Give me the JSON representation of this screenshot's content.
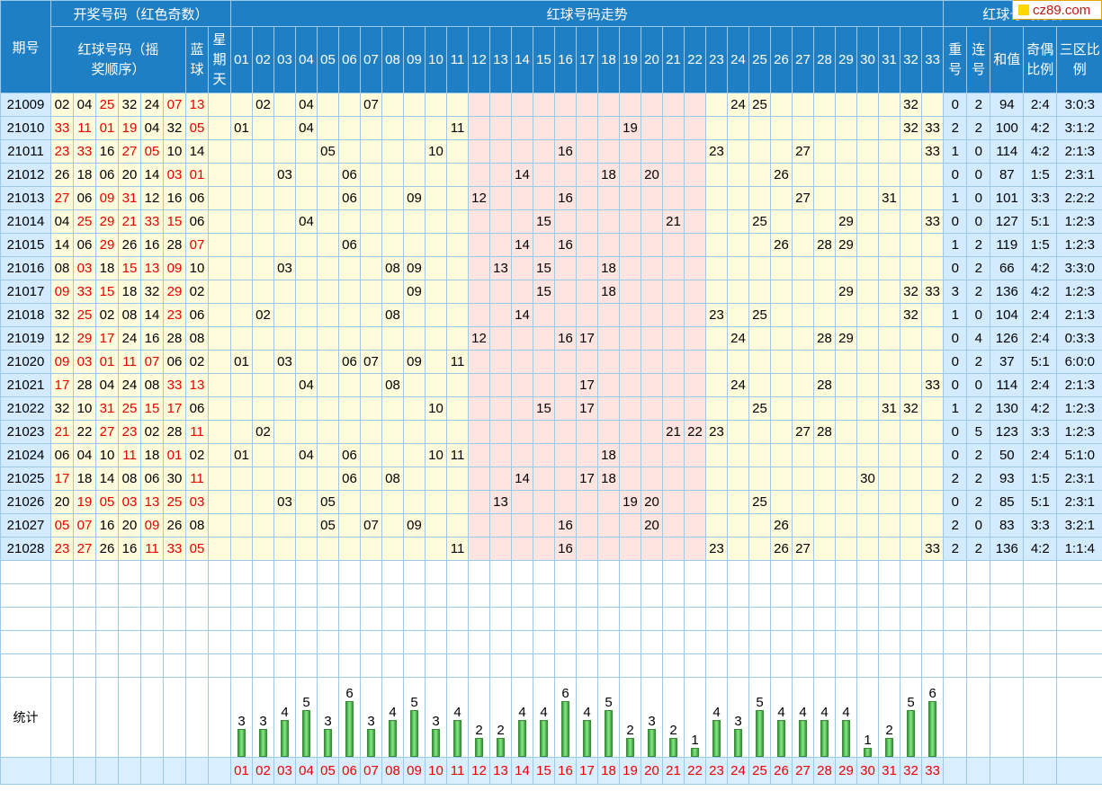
{
  "header": {
    "draw_numbers": "开奖号码（红色奇数）",
    "trend": "红球号码走势",
    "analysis": "红球号码分析",
    "period": "期号",
    "red_balls": "红球号码（摇奖顺序）",
    "blue_ball": "蓝球",
    "weekday": "星期天",
    "repeat": "重号",
    "consecutive": "连号",
    "sum": "和值",
    "odd_even": "奇偶比例",
    "zones": "三区比例",
    "numbers": [
      "01",
      "02",
      "03",
      "04",
      "05",
      "06",
      "07",
      "08",
      "09",
      "10",
      "11",
      "12",
      "13",
      "14",
      "15",
      "16",
      "17",
      "18",
      "19",
      "20",
      "21",
      "22",
      "23",
      "24",
      "25",
      "26",
      "27",
      "28",
      "29",
      "30",
      "31",
      "32",
      "33"
    ]
  },
  "rows": [
    {
      "period": "21009",
      "reds": [
        "02",
        "04",
        "25",
        "32",
        "24",
        "07"
      ],
      "blue": "13",
      "repeat": "0",
      "consec": "2",
      "sum": "94",
      "oe": "2:4",
      "zone": "3:0:3"
    },
    {
      "period": "21010",
      "reds": [
        "33",
        "11",
        "01",
        "19",
        "04",
        "32"
      ],
      "blue": "05",
      "repeat": "2",
      "consec": "2",
      "sum": "100",
      "oe": "4:2",
      "zone": "3:1:2"
    },
    {
      "period": "21011",
      "reds": [
        "23",
        "33",
        "16",
        "27",
        "05",
        "10"
      ],
      "blue": "14",
      "repeat": "1",
      "consec": "0",
      "sum": "114",
      "oe": "4:2",
      "zone": "2:1:3"
    },
    {
      "period": "21012",
      "reds": [
        "26",
        "18",
        "06",
        "20",
        "14",
        "03"
      ],
      "blue": "01",
      "repeat": "0",
      "consec": "0",
      "sum": "87",
      "oe": "1:5",
      "zone": "2:3:1"
    },
    {
      "period": "21013",
      "reds": [
        "27",
        "06",
        "09",
        "31",
        "12",
        "16"
      ],
      "blue": "06",
      "repeat": "1",
      "consec": "0",
      "sum": "101",
      "oe": "3:3",
      "zone": "2:2:2"
    },
    {
      "period": "21014",
      "reds": [
        "04",
        "25",
        "29",
        "21",
        "33",
        "15"
      ],
      "blue": "06",
      "repeat": "0",
      "consec": "0",
      "sum": "127",
      "oe": "5:1",
      "zone": "1:2:3"
    },
    {
      "period": "21015",
      "reds": [
        "14",
        "06",
        "29",
        "26",
        "16",
        "28"
      ],
      "blue": "07",
      "repeat": "1",
      "consec": "2",
      "sum": "119",
      "oe": "1:5",
      "zone": "1:2:3"
    },
    {
      "period": "21016",
      "reds": [
        "08",
        "03",
        "18",
        "15",
        "13",
        "09"
      ],
      "blue": "10",
      "repeat": "0",
      "consec": "2",
      "sum": "66",
      "oe": "4:2",
      "zone": "3:3:0"
    },
    {
      "period": "21017",
      "reds": [
        "09",
        "33",
        "15",
        "18",
        "32",
        "29"
      ],
      "blue": "02",
      "repeat": "3",
      "consec": "2",
      "sum": "136",
      "oe": "4:2",
      "zone": "1:2:3"
    },
    {
      "period": "21018",
      "reds": [
        "32",
        "25",
        "02",
        "08",
        "14",
        "23"
      ],
      "blue": "06",
      "repeat": "1",
      "consec": "0",
      "sum": "104",
      "oe": "2:4",
      "zone": "2:1:3"
    },
    {
      "period": "21019",
      "reds": [
        "12",
        "29",
        "17",
        "24",
        "16",
        "28"
      ],
      "blue": "08",
      "repeat": "0",
      "consec": "4",
      "sum": "126",
      "oe": "2:4",
      "zone": "0:3:3"
    },
    {
      "period": "21020",
      "reds": [
        "09",
        "03",
        "01",
        "11",
        "07",
        "06"
      ],
      "blue": "02",
      "repeat": "0",
      "consec": "2",
      "sum": "37",
      "oe": "5:1",
      "zone": "6:0:0"
    },
    {
      "period": "21021",
      "reds": [
        "17",
        "28",
        "04",
        "24",
        "08",
        "33"
      ],
      "blue": "13",
      "repeat": "0",
      "consec": "0",
      "sum": "114",
      "oe": "2:4",
      "zone": "2:1:3"
    },
    {
      "period": "21022",
      "reds": [
        "32",
        "10",
        "31",
        "25",
        "15",
        "17"
      ],
      "blue": "06",
      "repeat": "1",
      "consec": "2",
      "sum": "130",
      "oe": "4:2",
      "zone": "1:2:3"
    },
    {
      "period": "21023",
      "reds": [
        "21",
        "22",
        "27",
        "23",
        "02",
        "28"
      ],
      "blue": "11",
      "repeat": "0",
      "consec": "5",
      "sum": "123",
      "oe": "3:3",
      "zone": "1:2:3"
    },
    {
      "period": "21024",
      "reds": [
        "06",
        "04",
        "10",
        "11",
        "18",
        "01"
      ],
      "blue": "02",
      "repeat": "0",
      "consec": "2",
      "sum": "50",
      "oe": "2:4",
      "zone": "5:1:0"
    },
    {
      "period": "21025",
      "reds": [
        "17",
        "18",
        "14",
        "08",
        "06",
        "30"
      ],
      "blue": "11",
      "repeat": "2",
      "consec": "2",
      "sum": "93",
      "oe": "1:5",
      "zone": "2:3:1"
    },
    {
      "period": "21026",
      "reds": [
        "20",
        "19",
        "05",
        "03",
        "13",
        "25"
      ],
      "blue": "03",
      "repeat": "0",
      "consec": "2",
      "sum": "85",
      "oe": "5:1",
      "zone": "2:3:1"
    },
    {
      "period": "21027",
      "reds": [
        "05",
        "07",
        "16",
        "20",
        "09",
        "26"
      ],
      "blue": "08",
      "repeat": "2",
      "consec": "0",
      "sum": "83",
      "oe": "3:3",
      "zone": "3:2:1"
    },
    {
      "period": "21028",
      "reds": [
        "23",
        "27",
        "26",
        "16",
        "11",
        "33"
      ],
      "blue": "05",
      "repeat": "2",
      "consec": "2",
      "sum": "136",
      "oe": "4:2",
      "zone": "1:1:4"
    }
  ],
  "stats": {
    "label": "统计",
    "counts": [
      3,
      3,
      4,
      5,
      3,
      6,
      3,
      4,
      5,
      3,
      4,
      2,
      2,
      4,
      4,
      6,
      4,
      5,
      2,
      3,
      2,
      1,
      4,
      3,
      5,
      4,
      4,
      4,
      4,
      1,
      2,
      5,
      6
    ]
  },
  "colors": {
    "odd": "#e60000",
    "header": "#1f7fc5",
    "zone2_bg": "#ffe4e0",
    "zone_bg": "#fffbdb"
  },
  "logo": {
    "text": "cz89.com"
  }
}
